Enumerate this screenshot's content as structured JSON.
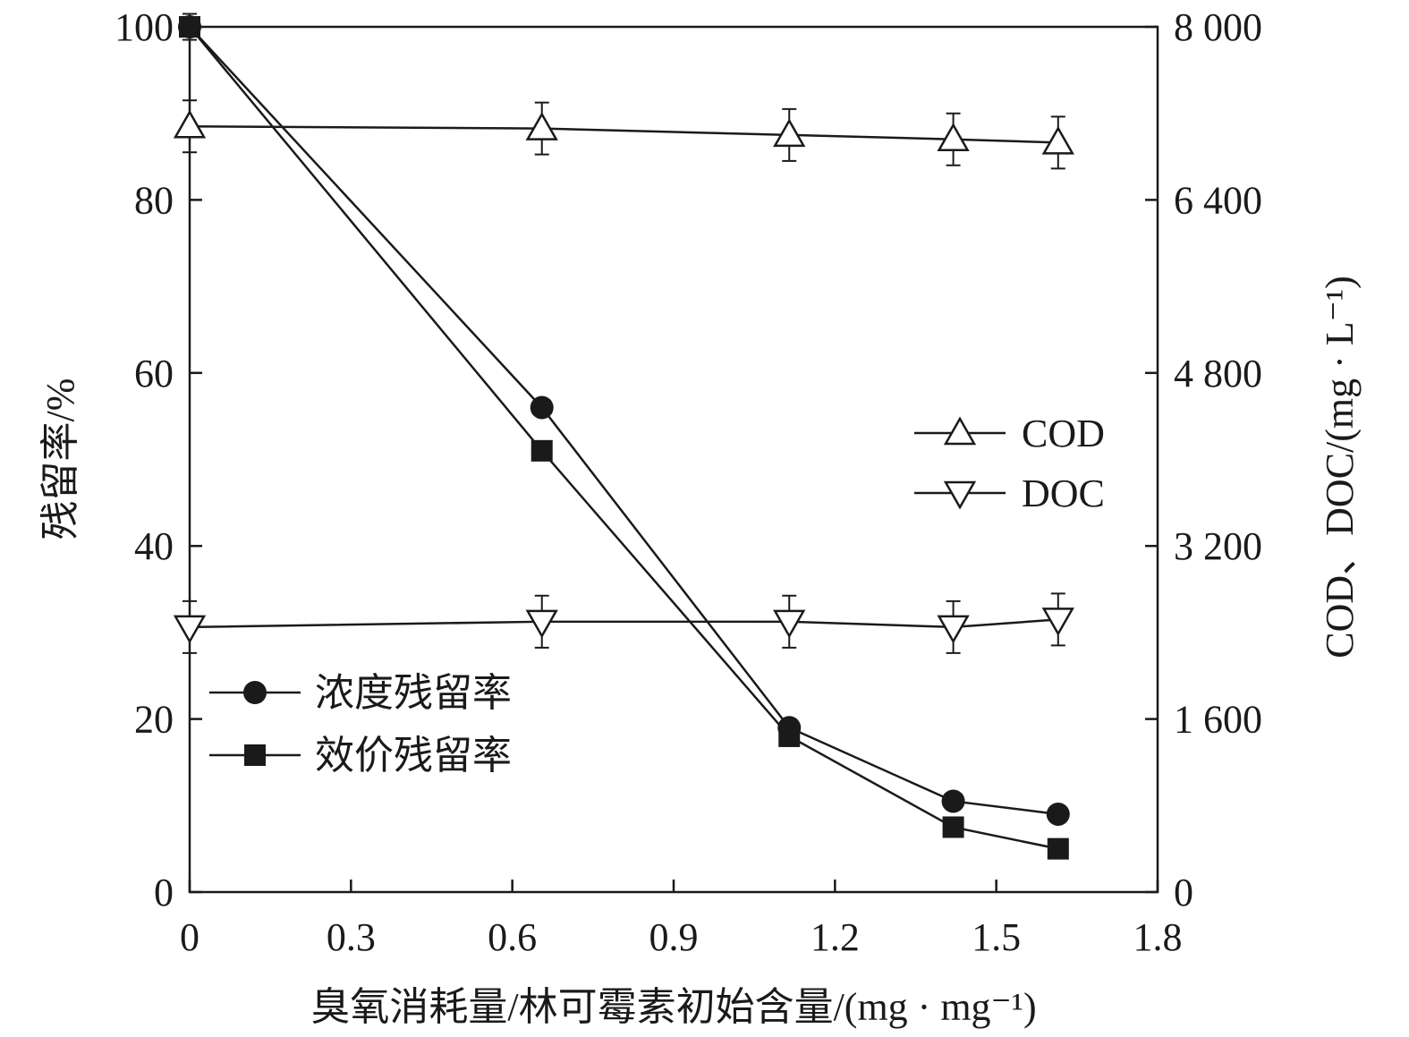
{
  "chart_data": {
    "type": "line",
    "x_axis": {
      "label": "臭氧消耗量/林可霉素初始含量/(mg · mg⁻¹)",
      "range": [
        0,
        1.8
      ],
      "ticks": [
        "0",
        "0.3",
        "0.6",
        "0.9",
        "1.2",
        "1.5",
        "1.8"
      ]
    },
    "y_left": {
      "label": "残留率/%",
      "range": [
        0,
        100
      ],
      "ticks": [
        "0",
        "20",
        "40",
        "60",
        "80",
        "100"
      ]
    },
    "y_right": {
      "label": "COD、DOC/(mg · L⁻¹)",
      "range": [
        0,
        8000
      ],
      "ticks": [
        "0",
        "1 600",
        "3 200",
        "4 800",
        "6 400",
        "8 000"
      ]
    },
    "x": [
      0,
      0.655,
      1.115,
      1.42,
      1.615
    ],
    "series": [
      {
        "name": "浓度残留率",
        "axis": "left",
        "marker": "circle",
        "values": [
          100,
          56,
          19,
          10.5,
          9
        ],
        "error": [
          1.5,
          0.8,
          1,
          0.5,
          0.5
        ]
      },
      {
        "name": "效价残留率",
        "axis": "left",
        "marker": "square",
        "values": [
          100,
          51,
          18,
          7.5,
          5
        ],
        "error": [
          0.8,
          0.8,
          0.8,
          0.5,
          0.5
        ]
      },
      {
        "name": "COD",
        "axis": "right",
        "marker": "triangle-up",
        "values": [
          7080,
          7060,
          7000,
          6960,
          6930
        ],
        "error": [
          240,
          240,
          240,
          240,
          240
        ]
      },
      {
        "name": "DOC",
        "axis": "right",
        "marker": "triangle-down",
        "values": [
          2450,
          2500,
          2500,
          2450,
          2520
        ],
        "error": [
          240,
          240,
          240,
          240,
          240
        ]
      }
    ],
    "legends": [
      {
        "position": "bottom-left",
        "entries": [
          "浓度残留率",
          "效价残留率"
        ]
      },
      {
        "position": "middle-right",
        "entries": [
          "COD",
          "DOC"
        ]
      }
    ],
    "grid": false
  }
}
